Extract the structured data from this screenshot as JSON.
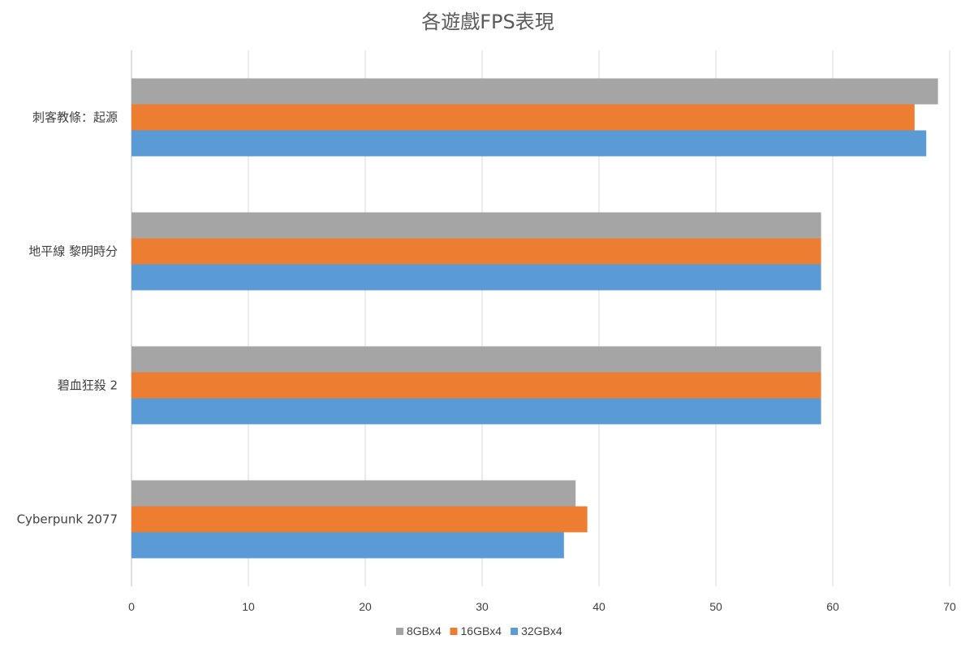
{
  "chart_data": {
    "type": "bar",
    "orientation": "horizontal",
    "title": "各遊戲FPS表現",
    "categories": [
      "刺客教條：起源",
      "地平線 黎明時分",
      "碧血狂殺 2",
      "Cyberpunk 2077"
    ],
    "series": [
      {
        "name": "8GBx4",
        "color": "#a5a5a5",
        "values": [
          69,
          59,
          59,
          38
        ]
      },
      {
        "name": "16GBx4",
        "color": "#ed7d31",
        "values": [
          67,
          59,
          59,
          39
        ]
      },
      {
        "name": "32GBx4",
        "color": "#5b9bd5",
        "values": [
          68,
          59,
          59,
          37
        ]
      }
    ],
    "xlim": [
      0,
      70
    ],
    "xticks": [
      "0",
      "10",
      "20",
      "30",
      "40",
      "50",
      "60",
      "70"
    ],
    "grid": true,
    "legend_position": "bottom",
    "xlabel": "",
    "ylabel": ""
  }
}
